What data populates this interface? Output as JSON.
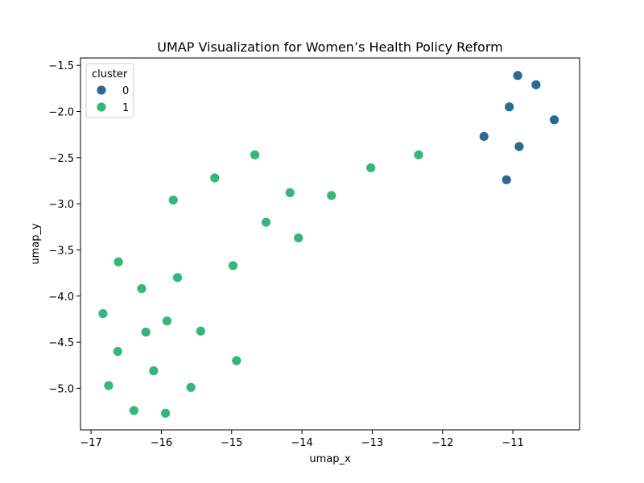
{
  "chart_data": {
    "type": "scatter",
    "title": "UMAP Visualization for Women’s Health Policy Reform",
    "xlabel": "umap_x",
    "ylabel": "umap_y",
    "xlim": [
      -17.15,
      -10.05
    ],
    "ylim": [
      -5.45,
      -1.42
    ],
    "xticks": [
      -17,
      -16,
      -15,
      -14,
      -13,
      -12,
      -11
    ],
    "yticks": [
      -5.0,
      -4.5,
      -4.0,
      -3.5,
      -3.0,
      -2.5,
      -2.0,
      -1.5
    ],
    "grid": false,
    "legend": {
      "title": "cluster",
      "placement": "top-left",
      "entries": [
        {
          "label": "0",
          "color": "#2c6b8f"
        },
        {
          "label": "1",
          "color": "#35b779"
        }
      ]
    },
    "series": [
      {
        "name": "0",
        "color": "#2c6b8f",
        "points": [
          {
            "x": -10.93,
            "y": -1.61
          },
          {
            "x": -10.67,
            "y": -1.71
          },
          {
            "x": -11.05,
            "y": -1.95
          },
          {
            "x": -10.41,
            "y": -2.09
          },
          {
            "x": -11.41,
            "y": -2.27
          },
          {
            "x": -10.91,
            "y": -2.38
          },
          {
            "x": -11.09,
            "y": -2.74
          }
        ]
      },
      {
        "name": "1",
        "color": "#35b779",
        "points": [
          {
            "x": -14.67,
            "y": -2.47
          },
          {
            "x": -12.34,
            "y": -2.47
          },
          {
            "x": -13.02,
            "y": -2.61
          },
          {
            "x": -15.24,
            "y": -2.72
          },
          {
            "x": -14.17,
            "y": -2.88
          },
          {
            "x": -13.58,
            "y": -2.91
          },
          {
            "x": -15.83,
            "y": -2.96
          },
          {
            "x": -14.51,
            "y": -3.2
          },
          {
            "x": -14.05,
            "y": -3.37
          },
          {
            "x": -16.61,
            "y": -3.63
          },
          {
            "x": -14.98,
            "y": -3.67
          },
          {
            "x": -15.77,
            "y": -3.8
          },
          {
            "x": -16.28,
            "y": -3.92
          },
          {
            "x": -16.83,
            "y": -4.19
          },
          {
            "x": -15.92,
            "y": -4.27
          },
          {
            "x": -15.44,
            "y": -4.38
          },
          {
            "x": -16.22,
            "y": -4.39
          },
          {
            "x": -16.62,
            "y": -4.6
          },
          {
            "x": -14.93,
            "y": -4.7
          },
          {
            "x": -16.11,
            "y": -4.81
          },
          {
            "x": -16.75,
            "y": -4.97
          },
          {
            "x": -15.58,
            "y": -4.99
          },
          {
            "x": -16.39,
            "y": -5.24
          },
          {
            "x": -15.94,
            "y": -5.27
          }
        ]
      }
    ]
  }
}
